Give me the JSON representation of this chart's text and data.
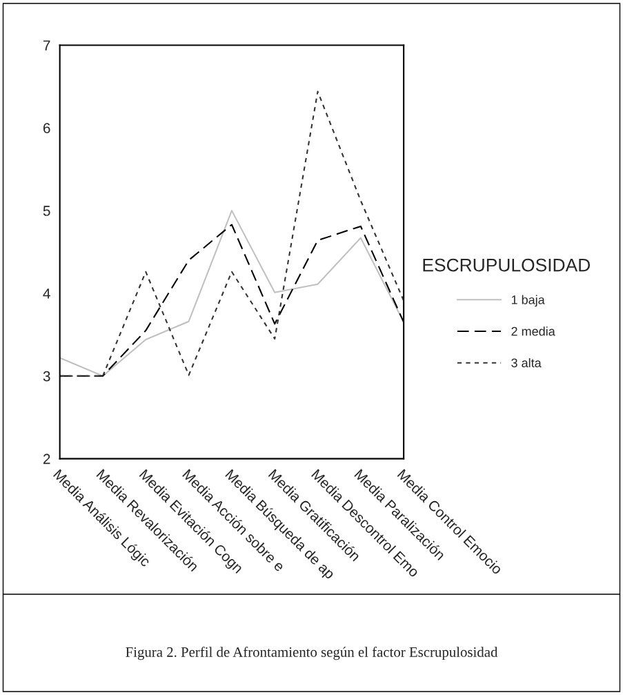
{
  "chart_data": {
    "type": "line",
    "categories": [
      "Media Análisis Lógic",
      "Media Revalorización",
      "Media Evitación Cogn",
      "Media Acción sobre e",
      "Media Búsqueda de ap",
      "Media Gratificación",
      "Media Descontrol Emo",
      "Media Paralización",
      "Media Control Emocio"
    ],
    "series": [
      {
        "name": "1 baja",
        "color": "#c0c0c0",
        "line_style": "solid",
        "values": [
          3.22,
          3.0,
          3.44,
          3.66,
          5.0,
          4.01,
          4.11,
          4.67,
          3.65
        ]
      },
      {
        "name": "2 media",
        "color": "#000000",
        "line_style": "dashed",
        "values": [
          3.0,
          3.0,
          3.55,
          4.4,
          4.83,
          3.63,
          4.64,
          4.81,
          3.65
        ]
      },
      {
        "name": "3 alta",
        "color": "#333333",
        "line_style": "dotted",
        "values": [
          3.0,
          3.0,
          4.26,
          3.01,
          4.26,
          3.45,
          6.44,
          5.12,
          3.91
        ]
      }
    ],
    "ylim": [
      2,
      7
    ],
    "yticks": [
      2,
      3,
      4,
      5,
      6,
      7
    ],
    "grid": false,
    "legend": "right",
    "legend_title": "ESCRUPULOSIDAD",
    "annotations": [
      "Figura 2. Perfil de Afrontamiento según el factor Escrupulosidad"
    ]
  }
}
